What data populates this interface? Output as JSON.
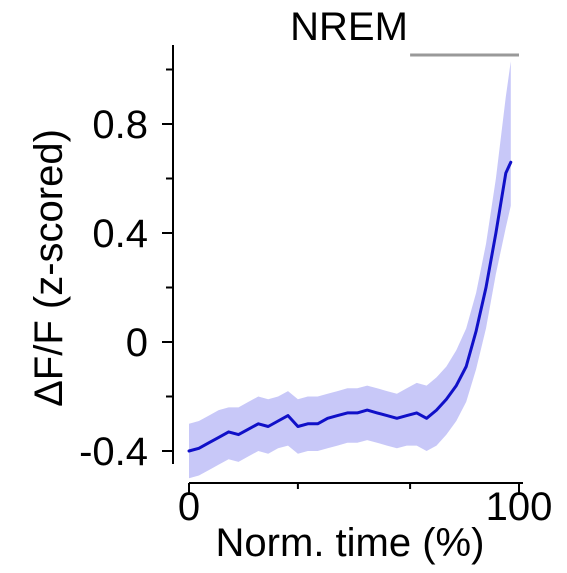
{
  "chart_data": {
    "type": "line",
    "title": "NREM",
    "xlabel": "Norm. time (%)",
    "ylabel": "ΔF/F (z-scored)",
    "xlim": [
      0,
      100
    ],
    "ylim": [
      -0.56,
      1.1
    ],
    "x_ticks": [
      0,
      100
    ],
    "x_minor_ticks": [
      33,
      67
    ],
    "y_ticks": [
      -0.4,
      0,
      0.4,
      0.8
    ],
    "y_minor_ticks": [
      -0.2,
      0.2,
      0.6,
      1.0
    ],
    "grid": false,
    "legend": "none",
    "annotation_bar": {
      "x_start": 67,
      "x_end": 100,
      "color": "#999999"
    },
    "series": [
      {
        "color": "#1010c8",
        "band_color": "#c8c8f8",
        "x": [
          0,
          3,
          6,
          9,
          12,
          15,
          18,
          21,
          24,
          27,
          30,
          33,
          36,
          39,
          42,
          45,
          48,
          51,
          54,
          57,
          60,
          63,
          66,
          69,
          72,
          75,
          78,
          81,
          84,
          87,
          90,
          93,
          96,
          97.5
        ],
        "y": [
          -0.4,
          -0.39,
          -0.37,
          -0.35,
          -0.33,
          -0.34,
          -0.32,
          -0.3,
          -0.31,
          -0.29,
          -0.27,
          -0.31,
          -0.3,
          -0.3,
          -0.28,
          -0.27,
          -0.26,
          -0.26,
          -0.25,
          -0.26,
          -0.27,
          -0.28,
          -0.27,
          -0.26,
          -0.28,
          -0.25,
          -0.21,
          -0.16,
          -0.09,
          0.04,
          0.2,
          0.4,
          0.62,
          0.66
        ],
        "lower": [
          -0.5,
          -0.49,
          -0.47,
          -0.45,
          -0.43,
          -0.44,
          -0.42,
          -0.4,
          -0.41,
          -0.39,
          -0.38,
          -0.41,
          -0.4,
          -0.4,
          -0.39,
          -0.38,
          -0.37,
          -0.37,
          -0.36,
          -0.37,
          -0.38,
          -0.39,
          -0.38,
          -0.38,
          -0.4,
          -0.38,
          -0.34,
          -0.29,
          -0.22,
          -0.1,
          0.05,
          0.25,
          0.42,
          0.5
        ],
        "upper": [
          -0.3,
          -0.29,
          -0.27,
          -0.25,
          -0.24,
          -0.24,
          -0.22,
          -0.2,
          -0.21,
          -0.2,
          -0.18,
          -0.21,
          -0.2,
          -0.2,
          -0.19,
          -0.18,
          -0.17,
          -0.17,
          -0.16,
          -0.17,
          -0.18,
          -0.19,
          -0.17,
          -0.15,
          -0.16,
          -0.13,
          -0.09,
          -0.03,
          0.05,
          0.18,
          0.36,
          0.6,
          0.9,
          1.03
        ]
      }
    ]
  }
}
